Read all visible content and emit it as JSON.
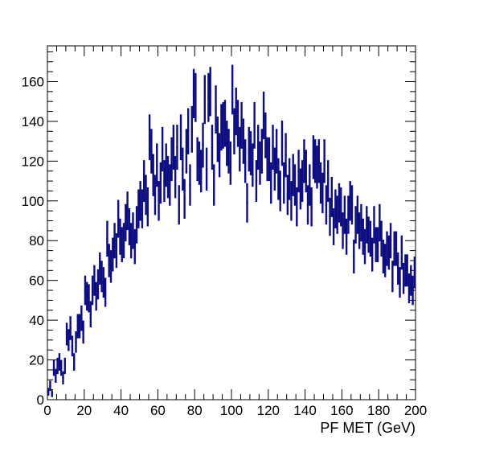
{
  "chart_data": {
    "type": "scatter",
    "style": "histogram-error-bars",
    "title": "",
    "xlabel": "PF MET (GeV)",
    "ylabel": "",
    "xlim": [
      0,
      200
    ],
    "ylim": [
      0,
      178
    ],
    "xticks": [
      0,
      20,
      40,
      60,
      80,
      100,
      120,
      140,
      160,
      180,
      200
    ],
    "yticks": [
      0,
      20,
      40,
      60,
      80,
      100,
      120,
      140,
      160
    ],
    "xtick_labels": [
      "0",
      "20",
      "40",
      "60",
      "80",
      "100",
      "120",
      "140",
      "160",
      "180",
      "200"
    ],
    "ytick_labels": [
      "0",
      "20",
      "40",
      "60",
      "80",
      "100",
      "120",
      "140",
      "160"
    ],
    "grid": false,
    "legend": "none",
    "bin_width": 1,
    "color": "#0d0d80",
    "series": [
      {
        "x": [
          0.5,
          1.5,
          2.5,
          3.5,
          4.5,
          5.5,
          6.5,
          7.5,
          8.5,
          9.5,
          10.5,
          11.5,
          12.5,
          13.5,
          14.5,
          15.5,
          16.5,
          17.5,
          18.5,
          19.5,
          20.5,
          21.5,
          22.5,
          23.5,
          24.5,
          25.5,
          26.5,
          27.5,
          28.5,
          29.5,
          30.5,
          31.5,
          32.5,
          33.5,
          34.5,
          35.5,
          36.5,
          37.5,
          38.5,
          39.5,
          40.5,
          41.5,
          42.5,
          43.5,
          44.5,
          45.5,
          46.5,
          47.5,
          48.5,
          49.5,
          50.5,
          51.5,
          52.5,
          53.5,
          54.5,
          55.5,
          56.5,
          57.5,
          58.5,
          59.5,
          60.5,
          61.5,
          62.5,
          63.5,
          64.5,
          65.5,
          66.5,
          67.5,
          68.5,
          69.5,
          70.5,
          71.5,
          72.5,
          73.5,
          74.5,
          75.5,
          76.5,
          77.5,
          78.5,
          79.5,
          80.5,
          81.5,
          82.5,
          83.5,
          84.5,
          85.5,
          86.5,
          87.5,
          88.5,
          89.5,
          90.5,
          91.5,
          92.5,
          93.5,
          94.5,
          95.5,
          96.5,
          97.5,
          98.5,
          99.5,
          100.5,
          101.5,
          102.5,
          103.5,
          104.5,
          105.5,
          106.5,
          107.5,
          108.5,
          109.5,
          110.5,
          111.5,
          112.5,
          113.5,
          114.5,
          115.5,
          116.5,
          117.5,
          118.5,
          119.5,
          120.5,
          121.5,
          122.5,
          123.5,
          124.5,
          125.5,
          126.5,
          127.5,
          128.5,
          129.5,
          130.5,
          131.5,
          132.5,
          133.5,
          134.5,
          135.5,
          136.5,
          137.5,
          138.5,
          139.5,
          140.5,
          141.5,
          142.5,
          143.5,
          144.5,
          145.5,
          146.5,
          147.5,
          148.5,
          149.5,
          150.5,
          151.5,
          152.5,
          153.5,
          154.5,
          155.5,
          156.5,
          157.5,
          158.5,
          159.5,
          160.5,
          161.5,
          162.5,
          163.5,
          164.5,
          165.5,
          166.5,
          167.5,
          168.5,
          169.5,
          170.5,
          171.5,
          172.5,
          173.5,
          174.5,
          175.5,
          176.5,
          177.5,
          178.5,
          179.5,
          180.5,
          181.5,
          182.5,
          183.5,
          184.5,
          185.5,
          186.5,
          187.5,
          188.5,
          189.5,
          190.5,
          191.5,
          192.5,
          193.5,
          194.5,
          195.5,
          196.5,
          197.5,
          198.5,
          199.5
        ],
        "y": [
          4,
          7,
          3,
          16,
          12,
          17,
          19,
          16,
          11,
          17,
          33,
          30,
          36,
          27,
          19,
          29,
          37,
          37,
          41,
          34,
          55,
          52,
          51,
          43,
          55,
          60,
          52,
          58,
          66,
          62,
          59,
          54,
          81,
          70,
          67,
          73,
          80,
          75,
          91,
          82,
          78,
          80,
          89,
          95,
          87,
          80,
          85,
          77,
          88,
          96,
          100,
          96,
          110,
          103,
          97,
          132,
          125,
          113,
          103,
          118,
          100,
          109,
          126,
          110,
          118,
          112,
          108,
          121,
          127,
          112,
          127,
          98,
          132,
          116,
          101,
          125,
          135,
          108,
          136,
          154,
          152,
          121,
          119,
          115,
          128,
          151,
          116,
          152,
          155,
          127,
          108,
          146,
          131,
          123,
          137,
          138,
          139,
          129,
          125,
          119,
          156,
          135,
          145,
          139,
          126,
          138,
          130,
          120,
          99,
          126,
          124,
          118,
          138,
          110,
          127,
          119,
          125,
          143,
          133,
          121,
          121,
          109,
          127,
          116,
          125,
          111,
          105,
          129,
          109,
          123,
          103,
          111,
          100,
          113,
          108,
          97,
          115,
          106,
          110,
          120,
          115,
          98,
          108,
          97,
          122,
          120,
          117,
          120,
          109,
          104,
          120,
          98,
          110,
          92,
          102,
          87,
          96,
          93,
          99,
          97,
          85,
          93,
          82,
          93,
          100,
          98,
          72,
          88,
          93,
          85,
          89,
          82,
          77,
          88,
          83,
          81,
          73,
          88,
          78,
          78,
          89,
          81,
          72,
          70,
          76,
          74,
          80,
          62,
          76,
          76,
          66,
          59,
          74,
          61,
          65,
          65,
          56,
          60,
          55,
          64
        ],
        "yerr": [
          2,
          2.6,
          1.7,
          4,
          3.5,
          4.1,
          4.4,
          4,
          3.3,
          4.1,
          5.7,
          5.5,
          6,
          5.2,
          4.4,
          5.4,
          6.1,
          6.1,
          6.4,
          5.8,
          7.4,
          7.2,
          7.1,
          6.6,
          7.4,
          7.7,
          7.2,
          7.6,
          8.1,
          7.9,
          7.7,
          7.3,
          9,
          8.4,
          8.2,
          8.5,
          8.9,
          8.7,
          9.5,
          9.1,
          8.8,
          8.9,
          9.4,
          9.7,
          9.3,
          8.9,
          9.2,
          8.8,
          9.4,
          9.8,
          10,
          9.8,
          10.5,
          10.1,
          9.8,
          11.5,
          11.2,
          10.6,
          10.1,
          10.9,
          10,
          10.4,
          11.2,
          10.5,
          10.9,
          10.6,
          10.4,
          11,
          11.3,
          10.6,
          11.3,
          9.9,
          11.5,
          10.8,
          10,
          11.2,
          11.6,
          10.4,
          11.7,
          12.4,
          12.3,
          11,
          10.9,
          10.7,
          11.3,
          12.3,
          10.8,
          12.3,
          12.4,
          11.3,
          10.4,
          12.1,
          11.4,
          11.1,
          11.7,
          11.7,
          11.8,
          11.4,
          11.2,
          10.9,
          12.5,
          11.6,
          12,
          11.8,
          11.2,
          11.7,
          11.4,
          11,
          9.9,
          11.2,
          11.1,
          10.9,
          11.7,
          10.5,
          11.3,
          10.9,
          11.2,
          12,
          11.5,
          11,
          11,
          10.4,
          11.3,
          10.8,
          11.2,
          10.5,
          10.2,
          11.4,
          10.4,
          11.1,
          10.1,
          10.5,
          10,
          10.6,
          10.4,
          9.8,
          10.7,
          10.3,
          10.5,
          11,
          10.7,
          9.9,
          10.4,
          9.8,
          11,
          11,
          10.8,
          11,
          10.4,
          10.2,
          11,
          9.9,
          10.5,
          9.6,
          10.1,
          9.3,
          9.8,
          9.6,
          9.9,
          9.8,
          9.2,
          9.6,
          9.1,
          9.6,
          10,
          9.9,
          8.5,
          9.4,
          9.6,
          9.2,
          9.4,
          9.1,
          8.8,
          9.4,
          9.1,
          9,
          8.5,
          9.4,
          8.8,
          8.8,
          9.4,
          9,
          8.5,
          8.4,
          8.7,
          8.6,
          8.9,
          7.9,
          8.7,
          8.7,
          8.1,
          7.7,
          8.6,
          7.8,
          8.1,
          8.1,
          7.5,
          7.7,
          7.4,
          8
        ]
      }
    ]
  }
}
